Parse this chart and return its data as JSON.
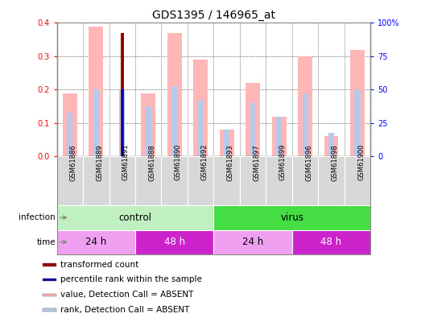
{
  "title": "GDS1395 / 146965_at",
  "samples": [
    "GSM61886",
    "GSM61889",
    "GSM61891",
    "GSM61888",
    "GSM61890",
    "GSM61892",
    "GSM61893",
    "GSM61897",
    "GSM61899",
    "GSM61896",
    "GSM61898",
    "GSM61900"
  ],
  "pink_values": [
    0.19,
    0.39,
    0.0,
    0.19,
    0.37,
    0.29,
    0.08,
    0.22,
    0.12,
    0.3,
    0.06,
    0.32
  ],
  "blue_rank_values": [
    0.13,
    0.2,
    0.2,
    0.15,
    0.21,
    0.17,
    0.08,
    0.16,
    0.12,
    0.19,
    0.07,
    0.2
  ],
  "red_values": [
    0.0,
    0.0,
    0.37,
    0.0,
    0.0,
    0.0,
    0.0,
    0.0,
    0.0,
    0.0,
    0.0,
    0.0
  ],
  "dark_blue_values": [
    0.0,
    0.0,
    0.2,
    0.0,
    0.0,
    0.0,
    0.0,
    0.0,
    0.0,
    0.0,
    0.0,
    0.0
  ],
  "ylim": [
    0,
    0.4
  ],
  "ylim_right": [
    0,
    100
  ],
  "yticks_left": [
    0,
    0.1,
    0.2,
    0.3,
    0.4
  ],
  "yticks_right": [
    0,
    25,
    50,
    75,
    100
  ],
  "infection_groups": [
    {
      "label": "control",
      "start": 0,
      "end": 6,
      "color": "#C0F0C0"
    },
    {
      "label": "virus",
      "start": 6,
      "end": 12,
      "color": "#44DD44"
    }
  ],
  "time_groups": [
    {
      "label": "24 h",
      "start": 0,
      "end": 3,
      "color": "#F0A0F0"
    },
    {
      "label": "48 h",
      "start": 3,
      "end": 6,
      "color": "#CC22CC"
    },
    {
      "label": "24 h",
      "start": 6,
      "end": 9,
      "color": "#F0A0F0"
    },
    {
      "label": "48 h",
      "start": 9,
      "end": 12,
      "color": "#CC22CC"
    }
  ],
  "pink_color": "#FFB6B6",
  "light_blue_color": "#B8C8E8",
  "red_color": "#990000",
  "dark_blue_color": "#0000AA",
  "legend_items": [
    {
      "color": "#990000",
      "label": "transformed count"
    },
    {
      "color": "#0000AA",
      "label": "percentile rank within the sample"
    },
    {
      "color": "#FFB6B6",
      "label": "value, Detection Call = ABSENT"
    },
    {
      "color": "#B8C8E8",
      "label": "rank, Detection Call = ABSENT"
    }
  ],
  "fig_border_color": "#888888"
}
